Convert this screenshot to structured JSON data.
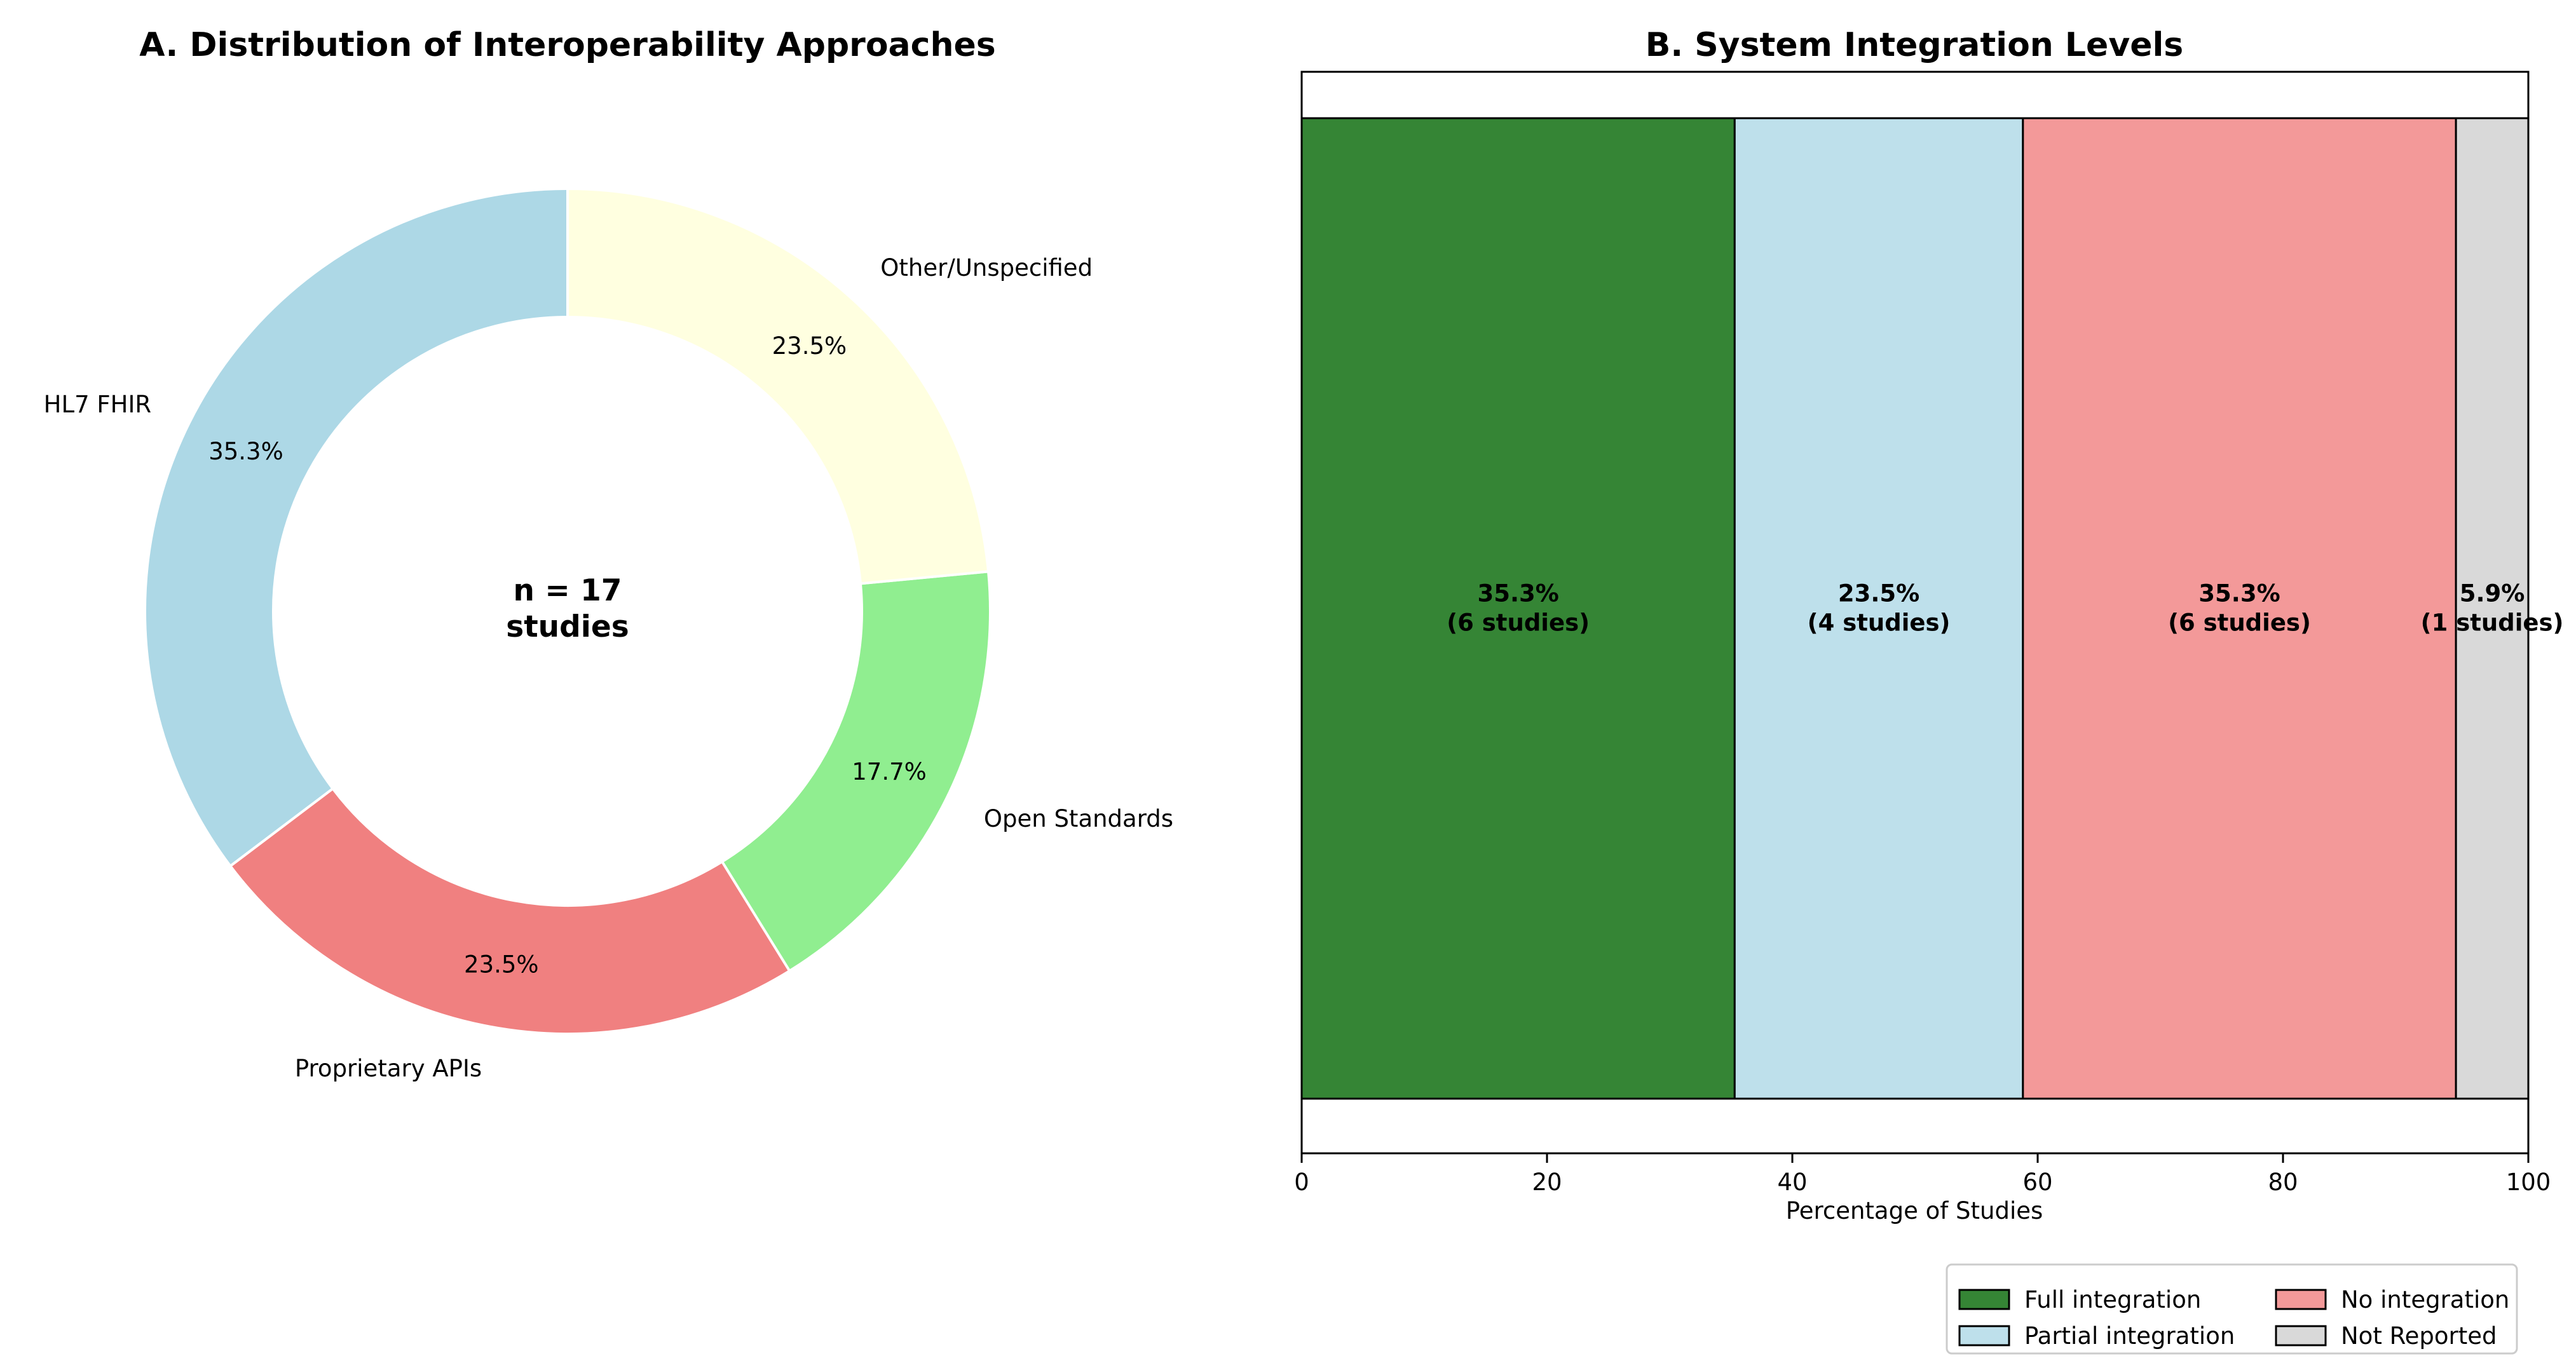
{
  "chart_data": [
    {
      "type": "pie",
      "title": "A. Distribution of Interoperability Approaches",
      "center_text": [
        "n = 17",
        "studies"
      ],
      "slices": [
        {
          "label": "HL7 FHIR",
          "value": 35.3,
          "pct_label": "35.3%",
          "color": "#ADD8E6"
        },
        {
          "label": "Proprietary APIs",
          "value": 23.5,
          "pct_label": "23.5%",
          "color": "#F08080"
        },
        {
          "label": "Open Standards",
          "value": 17.7,
          "pct_label": "17.7%",
          "color": "#90EE90"
        },
        {
          "label": "Other/Unspecified",
          "value": 23.5,
          "pct_label": "23.5%",
          "color": "#FFFFE0"
        }
      ]
    },
    {
      "type": "bar",
      "orientation": "horizontal-stacked",
      "title": "B. System Integration Levels",
      "xlabel": "Percentage of Studies",
      "xlim": [
        0,
        100
      ],
      "xticks": [
        "0",
        "20",
        "40",
        "60",
        "80",
        "100"
      ],
      "series": [
        {
          "name": "Full integration",
          "value": 35.3,
          "label_line1": "35.3%",
          "label_line2": "(6 studies)",
          "color": "#358535"
        },
        {
          "name": "Partial integration",
          "value": 23.5,
          "label_line1": "23.5%",
          "label_line2": "(4 studies)",
          "color": "#BEE0EB"
        },
        {
          "name": "No integration",
          "value": 35.3,
          "label_line1": "35.3%",
          "label_line2": "(6 studies)",
          "color": "#F39999"
        },
        {
          "name": "Not Reported",
          "value": 5.9,
          "label_line1": "5.9%",
          "label_line2": "(1 studies)",
          "color": "#D9D9D9"
        }
      ],
      "legend": {
        "location": "lower-right",
        "columns": 2
      }
    }
  ]
}
